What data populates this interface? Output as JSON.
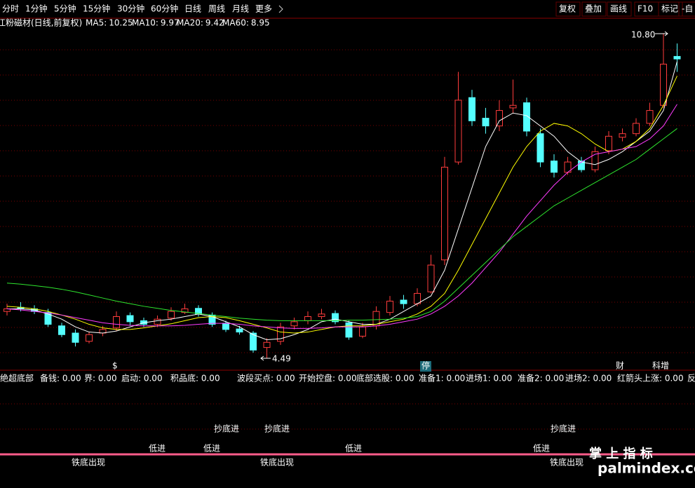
{
  "toolbar": {
    "periods": [
      "分时",
      "1分钟",
      "5分钟",
      "15分钟",
      "30分钟",
      "60分钟",
      "日线",
      "周线",
      "月线",
      "更多"
    ],
    "tools": [
      "复权",
      "叠加",
      "画线",
      "F10",
      "标记",
      "-自"
    ]
  },
  "chart_data": {
    "type": "candlestick",
    "title": "江粉磁材(日线,前复权)",
    "open": [
      5.4,
      5.48,
      5.45,
      5.38,
      5.12,
      4.98,
      4.82,
      4.98,
      5.08,
      5.32,
      5.22,
      5.15,
      5.27,
      5.38,
      5.46,
      5.33,
      5.17,
      5.06,
      4.98,
      4.7,
      4.82,
      5.12,
      5.22,
      5.3,
      5.36,
      5.18,
      4.92,
      5.12,
      5.38,
      5.62,
      5.55,
      5.78,
      6.4,
      8.3,
      9.55,
      9.15,
      9.0,
      9.35,
      9.45,
      8.85,
      8.32,
      8.1,
      8.32,
      8.15,
      8.52,
      8.78,
      8.85,
      9.05,
      9.4,
      10.35
    ],
    "high": [
      5.55,
      5.58,
      5.52,
      5.45,
      5.18,
      5.05,
      5.0,
      5.12,
      5.4,
      5.38,
      5.28,
      5.32,
      5.48,
      5.55,
      5.52,
      5.38,
      5.22,
      5.12,
      5.02,
      4.88,
      5.18,
      5.28,
      5.4,
      5.45,
      5.42,
      5.22,
      5.18,
      5.5,
      5.7,
      5.72,
      5.85,
      6.5,
      8.4,
      10.05,
      9.7,
      9.35,
      9.5,
      9.9,
      9.55,
      8.95,
      8.45,
      8.4,
      8.4,
      8.6,
      8.9,
      8.95,
      9.15,
      9.45,
      10.8,
      10.6
    ],
    "low": [
      5.32,
      5.4,
      5.35,
      5.1,
      4.9,
      4.72,
      4.78,
      4.92,
      5.02,
      5.12,
      5.1,
      5.1,
      5.22,
      5.35,
      5.3,
      5.1,
      5.0,
      4.95,
      4.6,
      4.49,
      4.75,
      5.05,
      5.15,
      5.25,
      5.15,
      4.85,
      4.88,
      5.05,
      5.32,
      5.45,
      5.5,
      5.75,
      6.3,
      8.25,
      9.0,
      8.85,
      8.9,
      9.25,
      8.8,
      8.2,
      8.0,
      8.05,
      8.1,
      8.1,
      8.45,
      8.7,
      8.8,
      9.0,
      9.35,
      10.05
    ],
    "close": [
      5.45,
      5.45,
      5.4,
      5.15,
      4.95,
      4.8,
      4.95,
      5.05,
      5.3,
      5.2,
      5.15,
      5.25,
      5.4,
      5.45,
      5.35,
      5.15,
      5.05,
      5.0,
      4.65,
      4.8,
      5.1,
      5.2,
      5.3,
      5.35,
      5.2,
      4.9,
      5.1,
      5.4,
      5.6,
      5.55,
      5.75,
      6.3,
      8.2,
      9.5,
      9.1,
      9.0,
      9.3,
      9.4,
      8.9,
      8.3,
      8.1,
      8.3,
      8.15,
      8.5,
      8.8,
      8.85,
      9.05,
      9.3,
      10.2,
      10.3
    ],
    "up_color": "#ff3c3c",
    "down_color": "#54ffff",
    "ylim": [
      4.3,
      10.9
    ],
    "series": [
      {
        "name": "MA5:",
        "color": "#ffffff",
        "values": [
          5.45,
          5.45,
          5.43,
          5.35,
          5.25,
          5.1,
          5.0,
          4.98,
          5.02,
          5.1,
          5.18,
          5.22,
          5.25,
          5.3,
          5.35,
          5.3,
          5.2,
          5.1,
          4.95,
          4.85,
          4.87,
          4.95,
          5.05,
          5.2,
          5.25,
          5.2,
          5.15,
          5.15,
          5.25,
          5.4,
          5.55,
          5.7,
          6.2,
          7.0,
          7.8,
          8.6,
          9.1,
          9.25,
          9.2,
          9.0,
          8.8,
          8.5,
          8.3,
          8.25,
          8.35,
          8.5,
          8.7,
          8.9,
          9.3,
          10.25
        ]
      },
      {
        "name": "MA10:",
        "color": "#ffff00",
        "values": [
          5.5,
          5.48,
          5.45,
          5.4,
          5.33,
          5.25,
          5.15,
          5.08,
          5.05,
          5.05,
          5.08,
          5.12,
          5.16,
          5.22,
          5.28,
          5.3,
          5.28,
          5.22,
          5.15,
          5.08,
          5.0,
          4.98,
          5.0,
          5.05,
          5.1,
          5.12,
          5.12,
          5.15,
          5.2,
          5.25,
          5.35,
          5.5,
          5.75,
          6.2,
          6.7,
          7.2,
          7.7,
          8.2,
          8.6,
          8.9,
          9.05,
          9.0,
          8.85,
          8.65,
          8.5,
          8.55,
          8.7,
          8.95,
          9.4,
          9.97
        ]
      },
      {
        "name": "MA20:",
        "color": "#ff3cff",
        "values": [
          5.45,
          5.43,
          5.4,
          5.37,
          5.33,
          5.28,
          5.23,
          5.18,
          5.15,
          5.13,
          5.12,
          5.12,
          5.12,
          5.13,
          5.15,
          5.17,
          5.17,
          5.15,
          5.12,
          5.1,
          5.08,
          5.07,
          5.07,
          5.08,
          5.1,
          5.1,
          5.1,
          5.12,
          5.15,
          5.2,
          5.25,
          5.35,
          5.5,
          5.7,
          5.95,
          6.25,
          6.55,
          6.9,
          7.25,
          7.55,
          7.85,
          8.1,
          8.3,
          8.45,
          8.5,
          8.55,
          8.6,
          8.75,
          9.0,
          9.42
        ]
      },
      {
        "name": "MA60:",
        "color": "#2ee62e",
        "values": [
          5.95,
          5.93,
          5.9,
          5.87,
          5.83,
          5.78,
          5.72,
          5.66,
          5.6,
          5.55,
          5.5,
          5.46,
          5.42,
          5.39,
          5.36,
          5.33,
          5.3,
          5.27,
          5.25,
          5.23,
          5.22,
          5.22,
          5.22,
          5.22,
          5.22,
          5.23,
          5.23,
          5.24,
          5.25,
          5.27,
          5.3,
          5.4,
          5.6,
          5.85,
          6.1,
          6.35,
          6.6,
          6.85,
          7.05,
          7.25,
          7.45,
          7.6,
          7.75,
          7.9,
          8.05,
          8.2,
          8.35,
          8.55,
          8.75,
          8.95
        ]
      }
    ],
    "annotations": [
      "10.80",
      "4.49"
    ]
  },
  "markers": [
    "$",
    "停",
    "财",
    "科增"
  ],
  "indicator": {
    "title": "绝超底部",
    "items": [
      {
        "text": "备钱: 0.00",
        "color": "#ffff00"
      },
      {
        "text": "界: 0.00",
        "color": "#ffffff"
      },
      {
        "text": "启动: 0.00",
        "color": "#ff3c3c"
      },
      {
        "text": "积品底: 0.00",
        "color": "#ff3cff"
      },
      {
        "text": "波段买点: 0.00",
        "color": "#ffffff"
      },
      {
        "text": "开始控盘: 0.00",
        "color": "#ffff00"
      },
      {
        "text": "底部选股: 0.00",
        "color": "#54ffff"
      },
      {
        "text": "准备1: 0.00",
        "color": "#ffff00"
      },
      {
        "text": "进场1: 0.00",
        "color": "#ff3c3c"
      },
      {
        "text": "准备2: 0.00",
        "color": "#ff3cff"
      },
      {
        "text": "进场2: 0.00",
        "color": "#5a8cff"
      },
      {
        "text": "红箭头上涨: 0.00",
        "color": "#ffff00"
      },
      {
        "text": "反",
        "color": "#2ee62e"
      }
    ],
    "signals": [
      "抄底进",
      "抄底进",
      "抄底进",
      "低进",
      "低进",
      "低进",
      "低进",
      "铁底出现",
      "铁底出现",
      "铁底出现"
    ]
  },
  "watermark": [
    "掌 上 指 标",
    "palmindex.com"
  ]
}
